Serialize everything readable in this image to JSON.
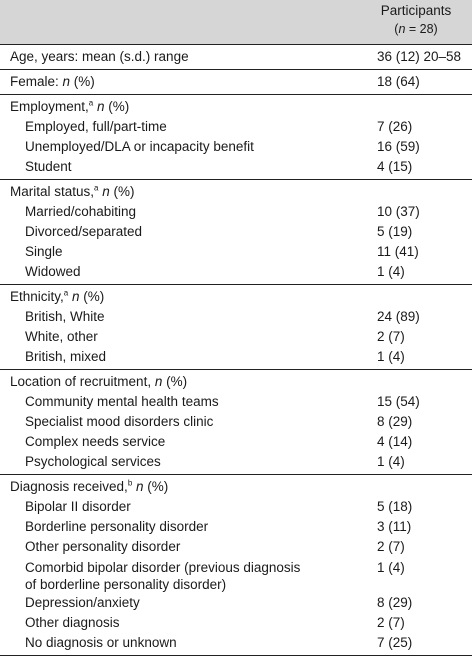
{
  "header": {
    "column_title": "Participants",
    "n_prefix": "(",
    "n_var": "n",
    "n_suffix": " = 28)"
  },
  "sections": {
    "age": {
      "label": "Age, years: mean (s.d.) range",
      "value": "36 (12) 20–58"
    },
    "female": {
      "label_prefix": "Female: ",
      "label_n": "n",
      "label_suffix": " (%)",
      "value": "18 (64)"
    },
    "employment": {
      "title": "Employment,",
      "sup": "a",
      "n": "n",
      "pct": " (%)",
      "rows": [
        {
          "label": "Employed, full/part-time",
          "value": "7 (26)"
        },
        {
          "label": "Unemployed/DLA or incapacity benefit",
          "value": "16 (59)"
        },
        {
          "label": "Student",
          "value": "4 (15)"
        }
      ]
    },
    "marital": {
      "title": "Marital status,",
      "sup": "a",
      "n": "n",
      "pct": " (%)",
      "rows": [
        {
          "label": "Married/cohabiting",
          "value": "10 (37)"
        },
        {
          "label": "Divorced/separated",
          "value": "5 (19)"
        },
        {
          "label": "Single",
          "value": "11 (41)"
        },
        {
          "label": "Widowed",
          "value": "1 (4)"
        }
      ]
    },
    "ethnicity": {
      "title": "Ethnicity,",
      "sup": "a",
      "n": "n",
      "pct": " (%)",
      "rows": [
        {
          "label": "British, White",
          "value": "24 (89)"
        },
        {
          "label": "White, other",
          "value": "2 (7)"
        },
        {
          "label": "British, mixed",
          "value": "1 (4)"
        }
      ]
    },
    "location": {
      "title": "Location of recruitment, ",
      "n": "n",
      "pct": " (%)",
      "rows": [
        {
          "label": "Community mental health teams",
          "value": "15 (54)"
        },
        {
          "label": "Specialist mood disorders clinic",
          "value": "8 (29)"
        },
        {
          "label": "Complex needs service",
          "value": "4 (14)"
        },
        {
          "label": "Psychological services",
          "value": "1 (4)"
        }
      ]
    },
    "diagnosis": {
      "title": "Diagnosis received,",
      "sup": "b",
      "n": "n",
      "pct": " (%)",
      "rows": [
        {
          "label": "Bipolar II disorder",
          "value": "5 (18)"
        },
        {
          "label": "Borderline personality disorder",
          "value": "3 (11)"
        },
        {
          "label": "Other personality disorder",
          "value": "2 (7)"
        },
        {
          "label_line1": "Comorbid bipolar disorder (previous diagnosis",
          "label_line2": "of borderline personality disorder)",
          "value": "1 (4)"
        },
        {
          "label": "Depression/anxiety",
          "value": "8 (29)"
        },
        {
          "label": "Other diagnosis",
          "value": "2 (7)"
        },
        {
          "label": "No diagnosis or unknown",
          "value": "7 (25)"
        }
      ]
    }
  }
}
